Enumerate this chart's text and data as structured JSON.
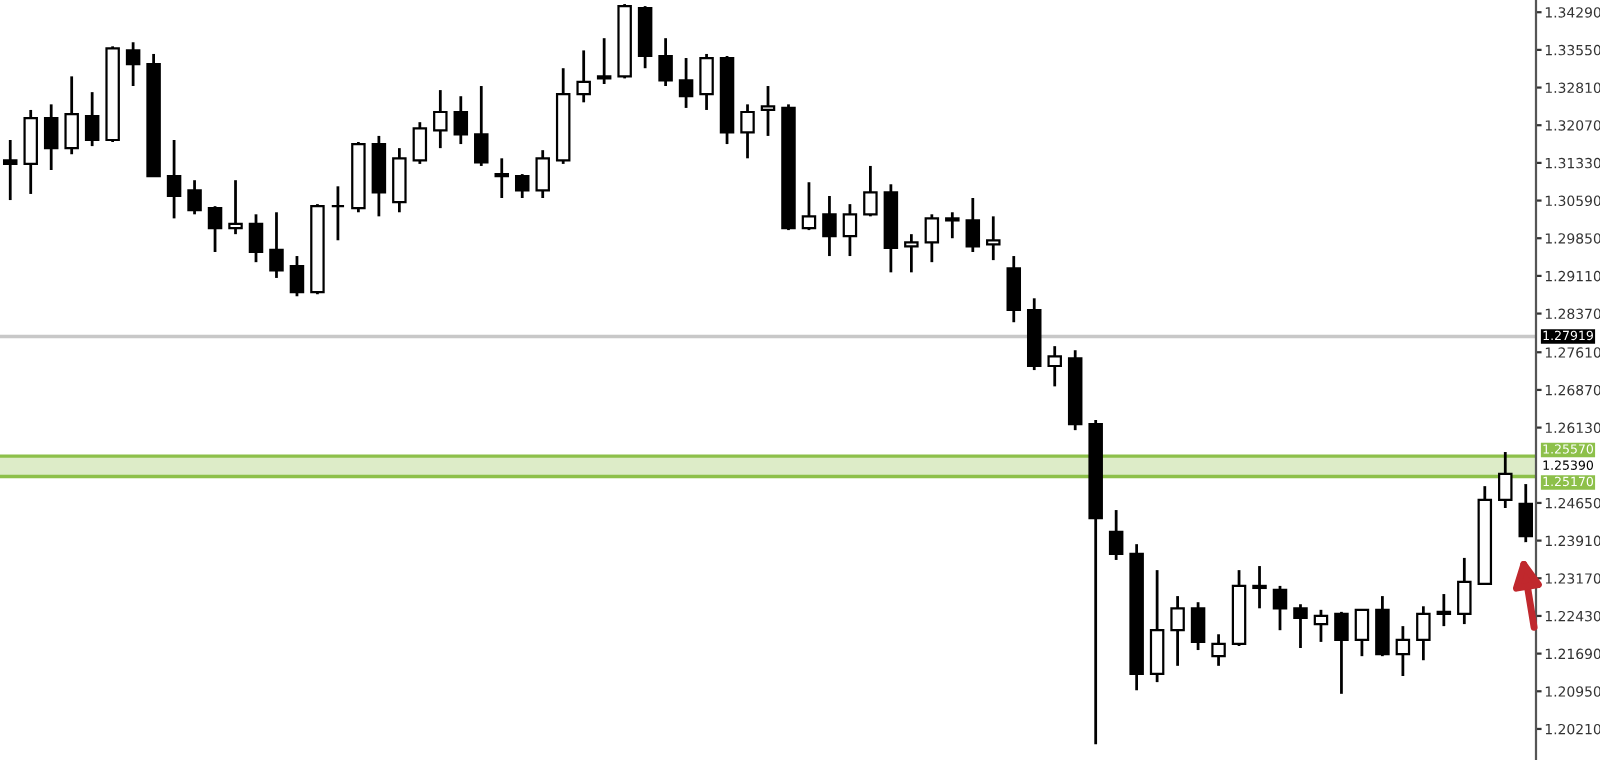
{
  "chart_data": {
    "type": "candlestick",
    "categories": [
      null,
      null,
      null,
      null,
      null,
      null,
      null,
      null,
      null,
      null,
      null,
      null,
      null,
      null,
      null,
      null,
      null,
      null,
      null,
      null,
      null,
      null,
      null,
      null,
      null,
      null,
      null,
      null,
      null,
      null,
      null,
      null,
      null,
      null,
      null,
      null,
      null,
      null,
      null,
      null,
      null,
      null,
      null,
      null,
      null,
      null,
      null,
      null,
      null,
      null,
      null,
      null,
      null,
      null,
      null,
      null,
      null,
      null,
      null,
      null,
      null,
      null,
      null,
      null,
      null,
      null,
      null,
      null,
      null,
      null,
      null,
      null,
      null,
      null,
      null
    ],
    "ohlc": [
      [
        1.3138,
        1.3178,
        1.306,
        1.3131
      ],
      [
        1.3131,
        1.3237,
        1.3072,
        1.3221
      ],
      [
        1.3221,
        1.3248,
        1.3119,
        1.3162
      ],
      [
        1.3162,
        1.3303,
        1.315,
        1.3229
      ],
      [
        1.3225,
        1.3272,
        1.3166,
        1.3178
      ],
      [
        1.3178,
        1.3362,
        1.3174,
        1.3358
      ],
      [
        1.3354,
        1.337,
        1.3284,
        1.3327
      ],
      [
        1.3327,
        1.3347,
        1.3107,
        1.3107
      ],
      [
        1.3107,
        1.3178,
        1.3024,
        1.3068
      ],
      [
        1.3079,
        1.3099,
        1.3032,
        1.304
      ],
      [
        1.3044,
        1.3048,
        1.2958,
        1.3005
      ],
      [
        1.3005,
        1.3099,
        1.2993,
        1.3013
      ],
      [
        1.3013,
        1.3032,
        1.2938,
        1.2958
      ],
      [
        1.2962,
        1.3036,
        1.2907,
        1.2922
      ],
      [
        1.293,
        1.295,
        1.2871,
        1.2879
      ],
      [
        1.2879,
        1.3052,
        1.2875,
        1.3048
      ],
      [
        1.3048,
        1.3087,
        1.2981,
        1.3048
      ],
      [
        1.3044,
        1.3174,
        1.3036,
        1.317
      ],
      [
        1.317,
        1.3186,
        1.3028,
        1.3075
      ],
      [
        1.3056,
        1.3162,
        1.3036,
        1.3142
      ],
      [
        1.3138,
        1.3213,
        1.3131,
        1.3201
      ],
      [
        1.3197,
        1.3276,
        1.3162,
        1.3233
      ],
      [
        1.3233,
        1.3264,
        1.317,
        1.3189
      ],
      [
        1.3189,
        1.3284,
        1.3127,
        1.3134
      ],
      [
        1.3111,
        1.3142,
        1.3064,
        1.3107
      ],
      [
        1.3107,
        1.3111,
        1.3064,
        1.3079
      ],
      [
        1.3079,
        1.3158,
        1.3064,
        1.3142
      ],
      [
        1.3138,
        1.3319,
        1.3131,
        1.3268
      ],
      [
        1.3268,
        1.3354,
        1.3252,
        1.3292
      ],
      [
        1.3299,
        1.3378,
        1.3288,
        1.3303
      ],
      [
        1.3303,
        1.3445,
        1.3299,
        1.3441
      ],
      [
        1.3437,
        1.3441,
        1.3319,
        1.3343
      ],
      [
        1.3343,
        1.3378,
        1.3284,
        1.3295
      ],
      [
        1.3295,
        1.3339,
        1.3241,
        1.3264
      ],
      [
        1.3268,
        1.3347,
        1.3237,
        1.3339
      ],
      [
        1.3339,
        1.3343,
        1.317,
        1.3193
      ],
      [
        1.3193,
        1.3248,
        1.3142,
        1.3233
      ],
      [
        1.3237,
        1.3284,
        1.3186,
        1.3244
      ],
      [
        1.3241,
        1.3248,
        1.3001,
        1.3005
      ],
      [
        1.3005,
        1.3095,
        1.3001,
        1.3028
      ],
      [
        1.3032,
        1.3068,
        1.295,
        1.2989
      ],
      [
        1.2989,
        1.3052,
        1.295,
        1.3032
      ],
      [
        1.3032,
        1.3127,
        1.3028,
        1.3075
      ],
      [
        1.3075,
        1.3091,
        1.2918,
        1.2966
      ],
      [
        1.2969,
        1.2993,
        1.2918,
        1.2977
      ],
      [
        1.2977,
        1.3032,
        1.2938,
        1.3024
      ],
      [
        1.3024,
        1.3036,
        1.2985,
        1.302
      ],
      [
        1.302,
        1.3064,
        1.2958,
        1.2969
      ],
      [
        1.2973,
        1.3028,
        1.2942,
        1.2981
      ],
      [
        1.2926,
        1.295,
        1.282,
        1.2844
      ],
      [
        1.2844,
        1.2867,
        1.2726,
        1.2734
      ],
      [
        1.2734,
        1.2773,
        1.2694,
        1.2753
      ],
      [
        1.2749,
        1.2765,
        1.2608,
        1.262
      ],
      [
        1.262,
        1.2628,
        1.1991,
        1.2435
      ],
      [
        1.2408,
        1.2451,
        1.2353,
        1.2365
      ],
      [
        1.2365,
        1.2384,
        1.2097,
        1.2129
      ],
      [
        1.2129,
        1.2333,
        1.2113,
        1.2215
      ],
      [
        1.2215,
        1.2282,
        1.2145,
        1.2258
      ],
      [
        1.2258,
        1.227,
        1.2176,
        1.2192
      ],
      [
        1.2164,
        1.2207,
        1.2145,
        1.2188
      ],
      [
        1.2188,
        1.2333,
        1.2184,
        1.2302
      ],
      [
        1.2302,
        1.2341,
        1.2258,
        1.2298
      ],
      [
        1.2294,
        1.2302,
        1.2215,
        1.2258
      ],
      [
        1.2258,
        1.2266,
        1.218,
        1.2239
      ],
      [
        1.2227,
        1.2255,
        1.2192,
        1.2243
      ],
      [
        1.2247,
        1.2251,
        1.209,
        1.2196
      ],
      [
        1.2196,
        1.2255,
        1.2164,
        1.2255
      ],
      [
        1.2255,
        1.2282,
        1.2164,
        1.2168
      ],
      [
        1.2168,
        1.2223,
        1.2125,
        1.2196
      ],
      [
        1.2196,
        1.2262,
        1.2156,
        1.2247
      ],
      [
        1.2247,
        1.2286,
        1.2223,
        1.2251
      ],
      [
        1.2247,
        1.2357,
        1.2227,
        1.231
      ],
      [
        1.2306,
        1.2498,
        1.2306,
        1.2471
      ],
      [
        1.2471,
        1.2565,
        1.2455,
        1.2522
      ],
      [
        1.2463,
        1.2502,
        1.2388,
        1.24
      ]
    ],
    "color": "#000000",
    "ylim": [
      1.196,
      1.3453
    ],
    "yticks": [
      {
        "value": 1.3429,
        "label": "1.34290"
      },
      {
        "value": 1.3355,
        "label": "1.33550"
      },
      {
        "value": 1.3281,
        "label": "1.32810"
      },
      {
        "value": 1.3207,
        "label": "1.32070"
      },
      {
        "value": 1.3133,
        "label": "1.31330"
      },
      {
        "value": 1.3059,
        "label": "1.30590"
      },
      {
        "value": 1.2985,
        "label": "1.29850"
      },
      {
        "value": 1.2911,
        "label": "1.29110"
      },
      {
        "value": 1.2837,
        "label": "1.28370"
      },
      {
        "value": 1.2761,
        "label": "1.27610"
      },
      {
        "value": 1.2687,
        "label": "1.26870"
      },
      {
        "value": 1.2613,
        "label": "1.26130"
      },
      {
        "value": 1.2465,
        "label": "1.24650"
      },
      {
        "value": 1.2391,
        "label": "1.23910"
      },
      {
        "value": 1.2317,
        "label": "1.23170"
      },
      {
        "value": 1.2243,
        "label": "1.22430"
      },
      {
        "value": 1.2169,
        "label": "1.21690"
      },
      {
        "value": 1.2095,
        "label": "1.20950"
      },
      {
        "value": 1.2021,
        "label": "1.20210"
      }
    ],
    "ref_lines": [
      {
        "axis": "y",
        "value": 1.27919,
        "label": "1.27919",
        "color": "#c8c8c8"
      },
      {
        "axis": "y",
        "value": 1.2557,
        "label": "1.25570",
        "color": "#8dc04a"
      },
      {
        "axis": "y",
        "value": 1.2517,
        "label": "1.25170",
        "color": "#8dc04a"
      }
    ],
    "bands": [
      {
        "axis": "y",
        "from": 1.2517,
        "to": 1.2557,
        "label": "1.25390",
        "color": "#8dc04a"
      }
    ],
    "tick_labels": "y",
    "grid": false,
    "legend": false
  }
}
